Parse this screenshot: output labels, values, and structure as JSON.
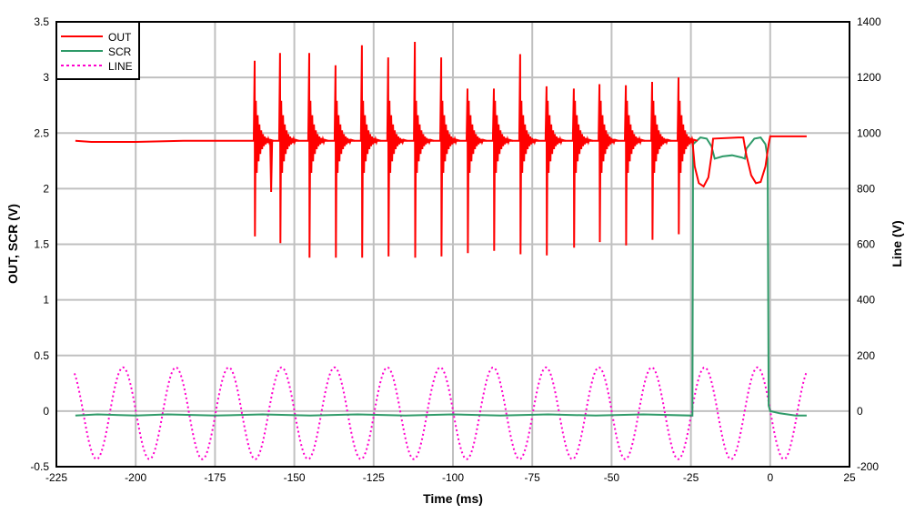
{
  "chart_data": {
    "type": "line",
    "xlabel": "Time (ms)",
    "ylabel": "OUT, SCR (V)",
    "y2label": "Line (V)",
    "xlim": [
      -225,
      25
    ],
    "ylim": [
      -0.5,
      3.5
    ],
    "y2lim": [
      -200,
      1400
    ],
    "xticks": [
      -225,
      -200,
      -175,
      -150,
      -125,
      -100,
      -75,
      -50,
      -25,
      0,
      25
    ],
    "yticks": [
      -0.5,
      0,
      0.5,
      1,
      1.5,
      2,
      2.5,
      3,
      3.5
    ],
    "y2ticks": [
      -200,
      0,
      200,
      400,
      600,
      800,
      1000,
      1200,
      1400
    ],
    "grid": true,
    "legend_position": "top-left",
    "series": [
      {
        "name": "OUT",
        "color": "#ff0000",
        "axis": "left",
        "style": "solid",
        "baseline": [
          [
            -219,
            2.43
          ],
          [
            -214,
            2.42
          ],
          [
            -200,
            2.42
          ],
          [
            -185,
            2.43
          ],
          [
            -163,
            2.43
          ],
          [
            -25,
            2.43
          ]
        ],
        "spikes": [
          {
            "t": -162.5,
            "max": 3.15,
            "min": 1.57
          },
          {
            "t": -154.5,
            "max": 3.22,
            "min": 1.51
          },
          {
            "t": -145.3,
            "max": 3.22,
            "min": 1.38
          },
          {
            "t": -137.0,
            "max": 3.11,
            "min": 1.38
          },
          {
            "t": -128.7,
            "max": 3.29,
            "min": 1.38
          },
          {
            "t": -120.4,
            "max": 3.18,
            "min": 1.39
          },
          {
            "t": -112.0,
            "max": 3.32,
            "min": 1.38
          },
          {
            "t": -103.7,
            "max": 3.18,
            "min": 1.39
          },
          {
            "t": -95.4,
            "max": 2.9,
            "min": 1.42
          },
          {
            "t": -87.1,
            "max": 2.9,
            "min": 1.44
          },
          {
            "t": -78.8,
            "max": 3.21,
            "min": 1.41
          },
          {
            "t": -70.5,
            "max": 2.92,
            "min": 1.4
          },
          {
            "t": -61.9,
            "max": 2.9,
            "min": 1.47
          },
          {
            "t": -53.8,
            "max": 2.94,
            "min": 1.52
          },
          {
            "t": -45.5,
            "max": 2.93,
            "min": 1.49
          },
          {
            "t": -37.2,
            "max": 2.96,
            "min": 1.54
          },
          {
            "t": -28.9,
            "max": 3.0,
            "min": 1.59
          }
        ],
        "extra_dips": [
          {
            "t": -157.3,
            "min": 1.97
          }
        ],
        "points": [
          [
            -24.5,
            2.43
          ],
          [
            -23.8,
            2.2
          ],
          [
            -22.5,
            2.05
          ],
          [
            -21,
            2.02
          ],
          [
            -19.5,
            2.1
          ],
          [
            -18.5,
            2.3
          ],
          [
            -18,
            2.45
          ],
          [
            -10,
            2.46
          ],
          [
            -8.5,
            2.46
          ],
          [
            -7.5,
            2.3
          ],
          [
            -6,
            2.12
          ],
          [
            -4.5,
            2.05
          ],
          [
            -3,
            2.06
          ],
          [
            -1.5,
            2.2
          ],
          [
            -0.5,
            2.4
          ],
          [
            0,
            2.47
          ],
          [
            11.5,
            2.47
          ]
        ]
      },
      {
        "name": "SCR",
        "color": "#2e9a68",
        "axis": "left",
        "style": "solid",
        "points": [
          [
            -219,
            -0.04
          ],
          [
            -212,
            -0.03
          ],
          [
            -200,
            -0.04
          ],
          [
            -190,
            -0.03
          ],
          [
            -175,
            -0.04
          ],
          [
            -160,
            -0.03
          ],
          [
            -145,
            -0.04
          ],
          [
            -130,
            -0.03
          ],
          [
            -115,
            -0.04
          ],
          [
            -100,
            -0.03
          ],
          [
            -85,
            -0.04
          ],
          [
            -70,
            -0.03
          ],
          [
            -55,
            -0.04
          ],
          [
            -40,
            -0.03
          ],
          [
            -24.5,
            -0.04
          ],
          [
            -24.3,
            2.4
          ],
          [
            -22,
            2.46
          ],
          [
            -20,
            2.45
          ],
          [
            -18.5,
            2.38
          ],
          [
            -17.5,
            2.27
          ],
          [
            -15,
            2.29
          ],
          [
            -12,
            2.3
          ],
          [
            -9,
            2.28
          ],
          [
            -8,
            2.27
          ],
          [
            -7.5,
            2.36
          ],
          [
            -5,
            2.45
          ],
          [
            -3,
            2.46
          ],
          [
            -1.5,
            2.4
          ],
          [
            -0.8,
            2.27
          ],
          [
            -0.5,
            0.05
          ],
          [
            0,
            0.0
          ],
          [
            3,
            -0.02
          ],
          [
            8,
            -0.04
          ],
          [
            11.5,
            -0.04
          ]
        ]
      },
      {
        "name": "LINE",
        "color": "#ff00cc",
        "axis": "right",
        "style": "dotted",
        "t_range": [
          -219.3,
          11.5
        ],
        "amplitude_v": 165,
        "offset_v": -8,
        "frequency_hz": 60,
        "peak_time_ms": -4
      }
    ]
  }
}
